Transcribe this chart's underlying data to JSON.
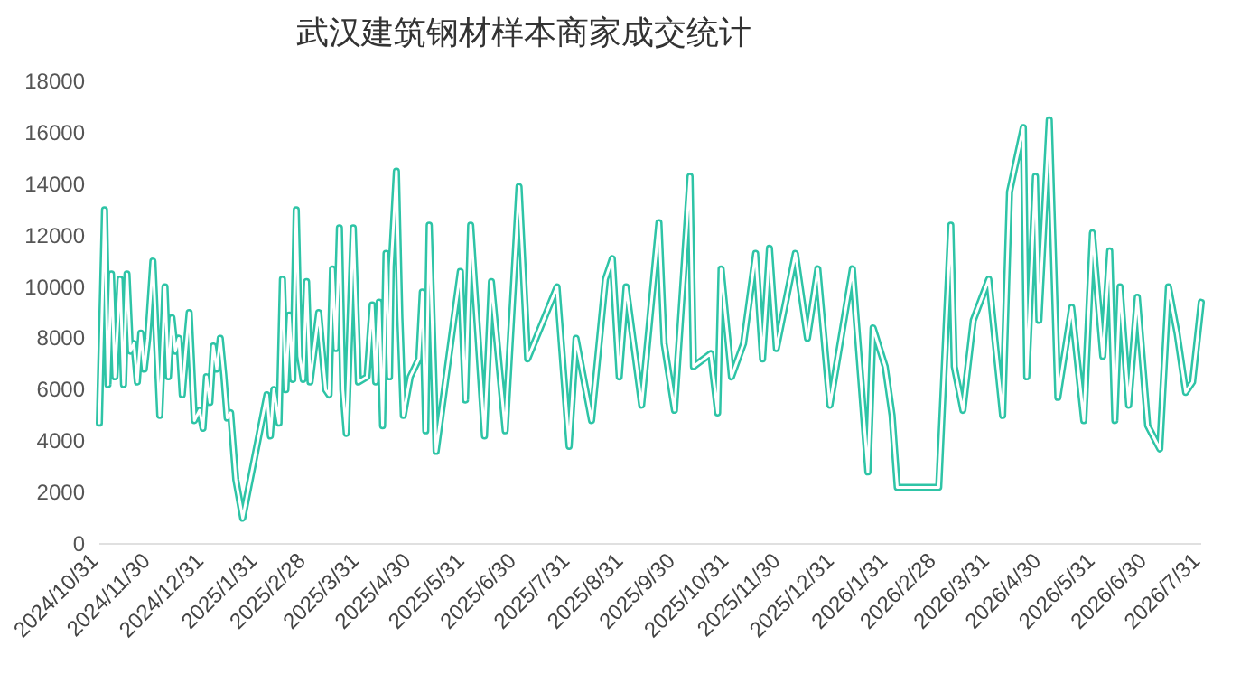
{
  "chart_data": {
    "type": "line",
    "title": "武汉建筑钢材样本商家成交统计",
    "xlim": [
      "2024-10-31",
      "2026-07-31"
    ],
    "xticks": [
      {
        "value": "2024-10-31",
        "label": "2024/10/31"
      },
      {
        "value": "2024-11-30",
        "label": "2024/11/30"
      },
      {
        "value": "2024-12-31",
        "label": "2024/12/31"
      },
      {
        "value": "2025-01-31",
        "label": "2025/1/31"
      },
      {
        "value": "2025-02-28",
        "label": "2025/2/28"
      },
      {
        "value": "2025-03-31",
        "label": "2025/3/31"
      },
      {
        "value": "2025-04-30",
        "label": "2025/4/30"
      },
      {
        "value": "2025-05-31",
        "label": "2025/5/31"
      },
      {
        "value": "2025-06-30",
        "label": "2025/6/30"
      },
      {
        "value": "2025-07-31",
        "label": "2025/7/31"
      },
      {
        "value": "2025-08-31",
        "label": "2025/8/31"
      },
      {
        "value": "2025-09-30",
        "label": "2025/9/30"
      },
      {
        "value": "2025-10-31",
        "label": "2025/10/31"
      },
      {
        "value": "2025-11-30",
        "label": "2025/11/30"
      },
      {
        "value": "2025-12-31",
        "label": "2025/12/31"
      },
      {
        "value": "2026-01-31",
        "label": "2026/1/31"
      },
      {
        "value": "2026-02-28",
        "label": "2026/2/28"
      },
      {
        "value": "2026-03-31",
        "label": "2026/3/31"
      },
      {
        "value": "2026-04-30",
        "label": "2026/4/30"
      },
      {
        "value": "2026-05-31",
        "label": "2026/5/31"
      },
      {
        "value": "2026-06-30",
        "label": "2026/6/30"
      },
      {
        "value": "2026-07-31",
        "label": "2026/7/31"
      }
    ],
    "ylim": [
      0,
      18000
    ],
    "yticks": [
      0,
      2000,
      4000,
      6000,
      8000,
      10000,
      12000,
      14000,
      16000,
      18000
    ],
    "grid": false,
    "marker": "none",
    "line_style": "solid",
    "series": [
      {
        "color": "#2ec4a6",
        "x": [
          "2024-10-31",
          "2024-11-03",
          "2024-11-05",
          "2024-11-07",
          "2024-11-09",
          "2024-11-12",
          "2024-11-14",
          "2024-11-16",
          "2024-11-18",
          "2024-11-20",
          "2024-11-22",
          "2024-11-24",
          "2024-11-26",
          "2024-11-28",
          "2024-12-01",
          "2024-12-05",
          "2024-12-08",
          "2024-12-10",
          "2024-12-12",
          "2024-12-14",
          "2024-12-16",
          "2024-12-18",
          "2024-12-20",
          "2024-12-22",
          "2024-12-25",
          "2024-12-28",
          "2024-12-30",
          "2025-01-01",
          "2025-01-03",
          "2025-01-05",
          "2025-01-07",
          "2025-01-09",
          "2025-01-11",
          "2025-01-13",
          "2025-01-15",
          "2025-01-18",
          "2025-01-22",
          "2025-02-05",
          "2025-02-07",
          "2025-02-09",
          "2025-02-12",
          "2025-02-14",
          "2025-02-16",
          "2025-02-18",
          "2025-02-20",
          "2025-02-22",
          "2025-02-24",
          "2025-02-26",
          "2025-02-28",
          "2025-03-02",
          "2025-03-07",
          "2025-03-11",
          "2025-03-13",
          "2025-03-15",
          "2025-03-17",
          "2025-03-19",
          "2025-03-21",
          "2025-03-23",
          "2025-03-27",
          "2025-03-30",
          "2025-04-04",
          "2025-04-07",
          "2025-04-09",
          "2025-04-11",
          "2025-04-13",
          "2025-04-15",
          "2025-04-17",
          "2025-04-18",
          "2025-04-21",
          "2025-04-23",
          "2025-04-25",
          "2025-04-29",
          "2025-05-04",
          "2025-05-06",
          "2025-05-08",
          "2025-05-10",
          "2025-05-14",
          "2025-05-28",
          "2025-05-31",
          "2025-06-03",
          "2025-06-11",
          "2025-06-15",
          "2025-06-23",
          "2025-07-01",
          "2025-07-06",
          "2025-07-23",
          "2025-07-30",
          "2025-08-03",
          "2025-08-12",
          "2025-08-20",
          "2025-08-24",
          "2025-08-28",
          "2025-09-01",
          "2025-09-10",
          "2025-09-20",
          "2025-09-23",
          "2025-09-29",
          "2025-10-08",
          "2025-10-10",
          "2025-10-20",
          "2025-10-24",
          "2025-10-26",
          "2025-11-01",
          "2025-11-08",
          "2025-11-15",
          "2025-11-19",
          "2025-11-23",
          "2025-11-27",
          "2025-12-08",
          "2025-12-15",
          "2025-12-21",
          "2025-12-28",
          "2026-01-10",
          "2026-01-19",
          "2026-01-22",
          "2026-01-29",
          "2026-02-02",
          "2026-02-05",
          "2026-03-01",
          "2026-03-08",
          "2026-03-10",
          "2026-03-15",
          "2026-03-21",
          "2026-03-30",
          "2026-04-07",
          "2026-04-11",
          "2026-04-19",
          "2026-04-21",
          "2026-04-26",
          "2026-04-28",
          "2026-05-04",
          "2026-05-09",
          "2026-05-17",
          "2026-05-24",
          "2026-05-29",
          "2026-06-04",
          "2026-06-08",
          "2026-06-11",
          "2026-06-14",
          "2026-06-19",
          "2026-06-24",
          "2026-06-30",
          "2026-07-07",
          "2026-07-12",
          "2026-07-17",
          "2026-07-22",
          "2026-07-26",
          "2026-07-31"
        ],
        "values": [
          4700,
          13000,
          6200,
          10500,
          6500,
          10300,
          6200,
          10500,
          7500,
          7800,
          6300,
          8200,
          6800,
          8000,
          11000,
          5000,
          10000,
          6500,
          8800,
          7500,
          8000,
          5800,
          7500,
          9000,
          4800,
          5200,
          4500,
          6500,
          5500,
          7700,
          6800,
          8000,
          6600,
          4900,
          5100,
          2500,
          1000,
          5800,
          4200,
          6000,
          4700,
          10300,
          6000,
          8900,
          6400,
          13000,
          7300,
          6400,
          10200,
          6300,
          9000,
          6000,
          5800,
          10700,
          7600,
          12300,
          6000,
          4300,
          12300,
          6300,
          6500,
          9300,
          6300,
          9400,
          4600,
          11300,
          6500,
          10800,
          14500,
          8800,
          5000,
          6500,
          7200,
          9800,
          4400,
          12400,
          3600,
          10600,
          5600,
          12400,
          4200,
          10200,
          4400,
          13900,
          7200,
          10000,
          3800,
          8000,
          4800,
          10300,
          11100,
          6500,
          10000,
          5400,
          12500,
          7800,
          5200,
          14300,
          6900,
          7400,
          5100,
          10700,
          6500,
          7800,
          11300,
          7200,
          11500,
          7600,
          11300,
          8000,
          10700,
          5400,
          10700,
          2800,
          8400,
          6900,
          5000,
          2200,
          2200,
          12400,
          6900,
          5200,
          8700,
          10300,
          5000,
          13700,
          16200,
          6500,
          14300,
          8700,
          16500,
          5700,
          9200,
          4800,
          12100,
          7300,
          11400,
          4800,
          10000,
          5400,
          9600,
          4600,
          3700,
          10000,
          8200,
          5900,
          6300,
          9400
        ]
      }
    ]
  }
}
